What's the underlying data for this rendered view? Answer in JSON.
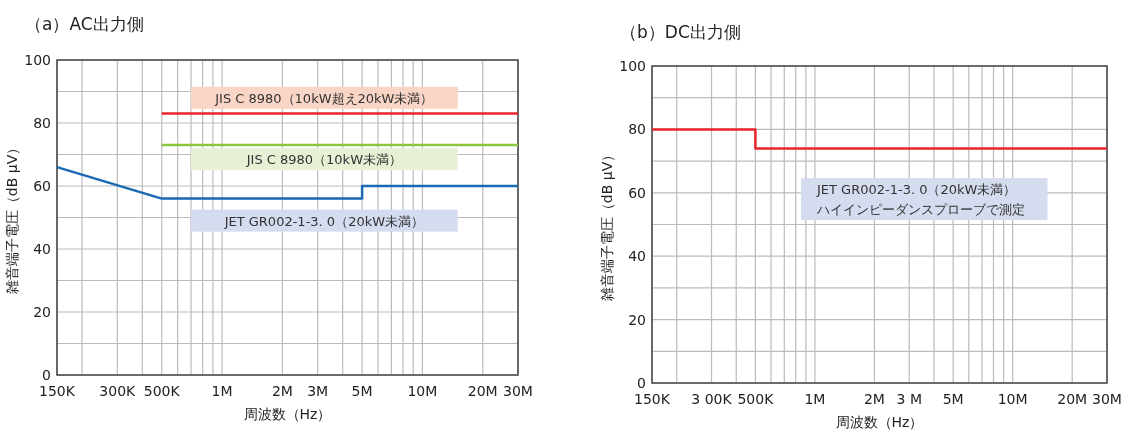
{
  "chart_data": [
    {
      "type": "line",
      "title": "（a）AC出力側",
      "xlabel": "周波数（Hz）",
      "ylabel": "雑音端子電圧（dB μV）",
      "log": "x",
      "grid": true,
      "xlim": [
        150000,
        30000000
      ],
      "ylim": [
        0,
        100
      ],
      "xticks": [
        {
          "value": 150000,
          "label": "150K"
        },
        {
          "value": 200000,
          "label": null
        },
        {
          "value": 300000,
          "label": "300K"
        },
        {
          "value": 400000,
          "label": null
        },
        {
          "value": 500000,
          "label": "500K"
        },
        {
          "value": 600000,
          "label": null
        },
        {
          "value": 700000,
          "label": null
        },
        {
          "value": 800000,
          "label": null
        },
        {
          "value": 900000,
          "label": null
        },
        {
          "value": 1000000,
          "label": "1M"
        },
        {
          "value": 2000000,
          "label": "2M"
        },
        {
          "value": 3000000,
          "label": "3M"
        },
        {
          "value": 4000000,
          "label": null
        },
        {
          "value": 5000000,
          "label": "5M"
        },
        {
          "value": 6000000,
          "label": null
        },
        {
          "value": 7000000,
          "label": null
        },
        {
          "value": 8000000,
          "label": null
        },
        {
          "value": 9000000,
          "label": null
        },
        {
          "value": 10000000,
          "label": "10M"
        },
        {
          "value": 20000000,
          "label": "20M"
        },
        {
          "value": 30000000,
          "label": "30M"
        }
      ],
      "yticks": [
        0,
        {
          "value": 10,
          "label": null
        },
        20,
        {
          "value": 30,
          "label": null
        },
        40,
        {
          "value": 50,
          "label": null
        },
        60,
        {
          "value": 70,
          "label": null
        },
        80,
        {
          "value": 90,
          "label": null
        },
        100
      ],
      "series": [
        {
          "name": "JIS C 8980（10kW超え20kW未満）",
          "color": "#e8262d",
          "x": [
            500000,
            30000000
          ],
          "values": [
            83,
            83
          ]
        },
        {
          "name": "JIS C 8980（10kW未満）",
          "color": "#8cc63f",
          "x": [
            500000,
            30000000
          ],
          "values": [
            73,
            73
          ]
        },
        {
          "name": "JET GR002-1-3. 0（20kW未満）",
          "color": "#1a6ab3",
          "x": [
            150000,
            500000,
            5000000,
            5000000,
            30000000
          ],
          "values": [
            66,
            56,
            56,
            60,
            60
          ]
        }
      ]
    },
    {
      "type": "line",
      "title": "（b）DC出力側",
      "xlabel": "周波数（Hz）",
      "ylabel": "雑音端子電圧（dB μV）",
      "log": "x",
      "grid": true,
      "xlim": [
        150000,
        30000000
      ],
      "ylim": [
        0,
        100
      ],
      "xticks": [
        {
          "value": 150000,
          "label": "150K"
        },
        {
          "value": 200000,
          "label": null
        },
        {
          "value": 300000,
          "label": "3 00K"
        },
        {
          "value": 400000,
          "label": null
        },
        {
          "value": 500000,
          "label": "500K"
        },
        {
          "value": 600000,
          "label": null
        },
        {
          "value": 700000,
          "label": null
        },
        {
          "value": 800000,
          "label": null
        },
        {
          "value": 900000,
          "label": null
        },
        {
          "value": 1000000,
          "label": "1M"
        },
        {
          "value": 2000000,
          "label": "2M"
        },
        {
          "value": 3000000,
          "label": "3 M"
        },
        {
          "value": 4000000,
          "label": null
        },
        {
          "value": 5000000,
          "label": "5M"
        },
        {
          "value": 6000000,
          "label": null
        },
        {
          "value": 7000000,
          "label": null
        },
        {
          "value": 8000000,
          "label": null
        },
        {
          "value": 9000000,
          "label": null
        },
        {
          "value": 10000000,
          "label": "10M"
        },
        {
          "value": 20000000,
          "label": "20M"
        },
        {
          "value": 30000000,
          "label": "30M"
        }
      ],
      "yticks": [
        0,
        {
          "value": 10,
          "label": null
        },
        20,
        {
          "value": 30,
          "label": null
        },
        40,
        {
          "value": 50,
          "label": null
        },
        60,
        {
          "value": 70,
          "label": null
        },
        80,
        {
          "value": 90,
          "label": null
        },
        100
      ],
      "series": [
        {
          "name": "JET GR002-1-3. 0（20kW未満）",
          "color": "#e8262d",
          "x": [
            150000,
            500000,
            500000,
            30000000
          ],
          "values": [
            80,
            80,
            74,
            74
          ]
        }
      ],
      "annotations": [
        "ハイインピーダンスプローブで測定"
      ]
    }
  ]
}
